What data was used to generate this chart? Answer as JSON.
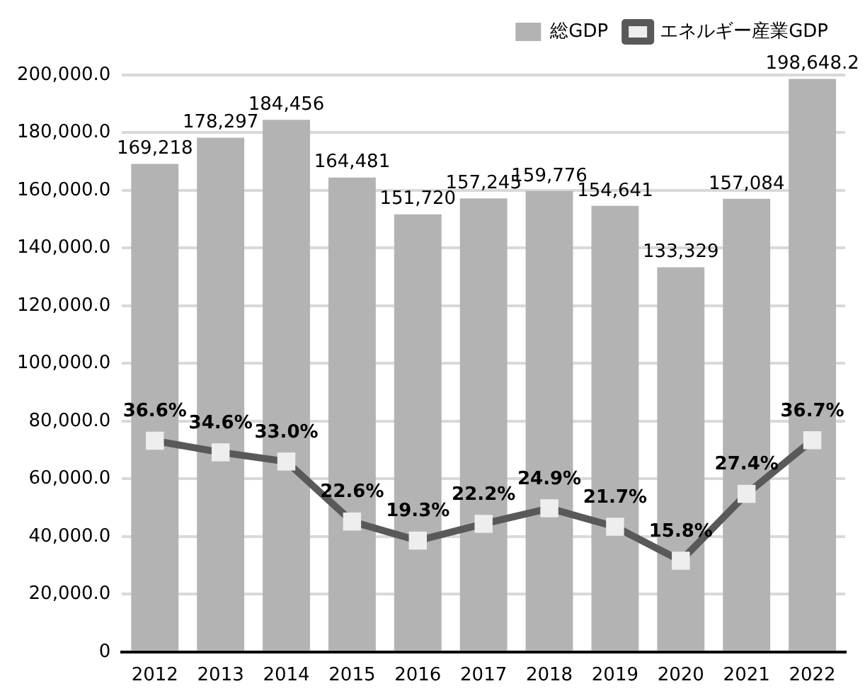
{
  "chart_data": {
    "type": "bar",
    "categories": [
      "2012",
      "2013",
      "2014",
      "2015",
      "2016",
      "2017",
      "2018",
      "2019",
      "2020",
      "2021",
      "2022"
    ],
    "series": [
      {
        "name": "総GDP",
        "color": "#b3b3b3",
        "values": [
          169218,
          178297,
          184456,
          164481,
          151720,
          157245,
          159776,
          154641,
          133329,
          157084,
          198648.2
        ],
        "value_labels": [
          "169,218",
          "178,297",
          "184,456",
          "164,481",
          "151,720",
          "157,245",
          "159,776",
          "154,641",
          "133,329",
          "157,084",
          "198,648.2"
        ]
      },
      {
        "name": "エネルギー産業GDP",
        "type": "line",
        "color": "#595959",
        "marker": "square",
        "axis": "y2",
        "values": [
          36.6,
          34.6,
          33.0,
          22.6,
          19.3,
          22.2,
          24.9,
          21.7,
          15.8,
          27.4,
          36.7
        ],
        "value_labels": [
          "36.6%",
          "34.6%",
          "33.0%",
          "22.6%",
          "19.3%",
          "22.2%",
          "24.9%",
          "21.7%",
          "15.8%",
          "27.4%",
          "36.7%"
        ]
      }
    ],
    "ylim": [
      0,
      200000
    ],
    "y2lim": [
      0,
      100
    ],
    "yticks": [
      0,
      {
        "value": 20000,
        "label": "20,000.0"
      },
      {
        "value": 40000,
        "label": "40,000.0"
      },
      {
        "value": 60000,
        "label": "60,000.0"
      },
      {
        "value": 80000,
        "label": "80,000.0"
      },
      {
        "value": 100000,
        "label": "100,000.0"
      },
      {
        "value": 120000,
        "label": "120,000.0"
      },
      {
        "value": 140000,
        "label": "140,000.0"
      },
      {
        "value": 160000,
        "label": "160,000.0"
      },
      {
        "value": 180000,
        "label": "180,000.0"
      },
      {
        "value": 200000,
        "label": "200,000.0"
      }
    ],
    "grid": "y",
    "legend": "top right"
  }
}
